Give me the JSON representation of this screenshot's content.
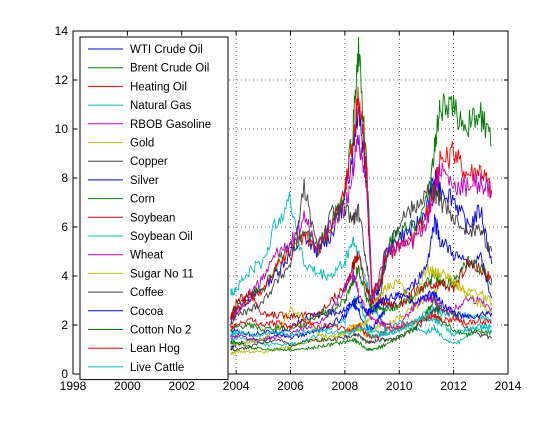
{
  "chart_data": {
    "type": "line",
    "x_ticks": [
      1998,
      2000,
      2002,
      2004,
      2006,
      2008,
      2010,
      2012,
      2014
    ],
    "y_ticks": [
      0,
      2,
      4,
      6,
      8,
      10,
      12,
      14
    ],
    "xlim": [
      1998,
      2014
    ],
    "ylim": [
      0,
      14
    ],
    "grid": "dotted, on",
    "legend_position": "top-left (inside plot)",
    "x": [
      2003.8,
      2004.0,
      2004.5,
      2005.0,
      2005.5,
      2006.0,
      2006.5,
      2007.0,
      2007.5,
      2008.0,
      2008.3,
      2008.5,
      2008.8,
      2009.0,
      2009.3,
      2009.5,
      2010.0,
      2010.5,
      2011.0,
      2011.3,
      2011.5,
      2012.0,
      2012.5,
      2013.0,
      2013.4
    ],
    "series": [
      {
        "name": "WTI Crude Oil",
        "color": "#0000ff",
        "values": [
          2.2,
          2.6,
          3.1,
          3.5,
          4.2,
          4.9,
          5.6,
          5.0,
          5.7,
          7.1,
          9.3,
          11.0,
          8.0,
          3.1,
          3.5,
          4.9,
          5.6,
          5.9,
          6.7,
          8.0,
          7.6,
          7.2,
          6.0,
          6.7,
          4.5
        ]
      },
      {
        "name": "Brent Crude Oil",
        "color": "#008000",
        "values": [
          2.4,
          2.7,
          3.2,
          3.5,
          4.5,
          5.1,
          5.8,
          5.2,
          6.2,
          7.3,
          10.0,
          13.2,
          8.5,
          3.3,
          3.8,
          5.1,
          5.8,
          6.0,
          7.0,
          9.2,
          10.9,
          10.8,
          10.2,
          10.6,
          9.3
        ]
      },
      {
        "name": "Heating Oil",
        "color": "#ff0000",
        "values": [
          2.3,
          2.6,
          3.0,
          3.4,
          4.5,
          4.9,
          5.6,
          5.0,
          6.0,
          7.5,
          9.5,
          11.4,
          8.4,
          3.3,
          3.7,
          4.7,
          5.3,
          5.5,
          6.4,
          7.8,
          8.6,
          9.0,
          8.2,
          8.4,
          7.5
        ]
      },
      {
        "name": "Natural Gas",
        "color": "#00bfbf",
        "values": [
          3.3,
          3.5,
          4.2,
          4.6,
          6.3,
          7.1,
          4.5,
          4.1,
          4.0,
          4.6,
          5.5,
          4.9,
          3.7,
          2.8,
          2.3,
          1.8,
          2.1,
          1.9,
          1.7,
          1.9,
          1.6,
          1.2,
          1.5,
          2.0,
          1.9
        ]
      },
      {
        "name": "RBOB Gasoline",
        "color": "#bf00bf",
        "values": [
          2.2,
          2.5,
          3.3,
          3.9,
          4.9,
          5.3,
          6.4,
          5.2,
          6.3,
          6.7,
          8.4,
          9.8,
          7.5,
          3.0,
          4.1,
          5.0,
          5.2,
          5.3,
          6.2,
          7.4,
          8.4,
          7.6,
          7.7,
          7.8,
          7.4
        ]
      },
      {
        "name": "Gold",
        "color": "#bfbf00",
        "values": [
          0.8,
          0.9,
          0.9,
          0.9,
          1.0,
          1.1,
          1.3,
          1.4,
          1.4,
          1.7,
          2.0,
          1.8,
          1.6,
          1.8,
          2.0,
          2.1,
          2.3,
          2.7,
          3.0,
          3.3,
          3.7,
          3.8,
          3.4,
          3.3,
          2.9
        ]
      },
      {
        "name": "Copper",
        "color": "#404040",
        "values": [
          2.0,
          2.4,
          2.6,
          3.0,
          3.8,
          4.5,
          7.6,
          5.0,
          6.5,
          6.7,
          6.3,
          6.6,
          4.6,
          2.5,
          3.2,
          4.6,
          6.3,
          6.8,
          7.4,
          7.4,
          7.1,
          6.2,
          6.0,
          5.8,
          5.0
        ]
      },
      {
        "name": "Silver",
        "color": "#0000ff",
        "values": [
          1.1,
          1.2,
          1.4,
          1.4,
          1.6,
          1.9,
          2.3,
          2.4,
          2.5,
          2.6,
          2.9,
          2.6,
          1.9,
          1.9,
          2.3,
          2.6,
          3.2,
          3.6,
          4.4,
          6.3,
          5.5,
          4.9,
          4.5,
          4.7,
          3.1
        ]
      },
      {
        "name": "Corn",
        "color": "#008000",
        "values": [
          1.8,
          1.9,
          2.0,
          1.8,
          1.9,
          1.9,
          2.0,
          2.4,
          2.6,
          3.0,
          3.8,
          4.3,
          3.1,
          2.6,
          2.7,
          2.6,
          2.8,
          3.1,
          3.7,
          4.0,
          3.8,
          3.7,
          4.6,
          4.3,
          3.8
        ]
      },
      {
        "name": "Soybean",
        "color": "#bf0000",
        "values": [
          2.3,
          2.9,
          3.4,
          2.4,
          2.4,
          2.4,
          2.4,
          2.4,
          3.0,
          3.5,
          4.4,
          4.9,
          3.4,
          2.9,
          3.0,
          2.9,
          2.8,
          3.3,
          3.6,
          3.5,
          3.7,
          3.5,
          4.5,
          4.3,
          3.8
        ]
      },
      {
        "name": "Soybean Oil",
        "color": "#00bfbf",
        "values": [
          1.3,
          1.5,
          1.4,
          1.2,
          1.2,
          1.2,
          1.3,
          1.6,
          1.9,
          2.2,
          3.0,
          3.1,
          2.1,
          1.7,
          1.7,
          1.6,
          1.8,
          2.1,
          2.5,
          2.6,
          2.5,
          2.4,
          2.4,
          2.3,
          2.2
        ]
      },
      {
        "name": "Wheat",
        "color": "#bf00bf",
        "values": [
          1.4,
          1.6,
          1.4,
          1.4,
          1.5,
          1.6,
          1.9,
          2.0,
          2.6,
          3.5,
          4.1,
          3.4,
          2.5,
          2.3,
          2.1,
          2.0,
          1.9,
          2.7,
          3.1,
          3.0,
          2.7,
          2.6,
          3.1,
          3.0,
          2.7
        ]
      },
      {
        "name": "Sugar No 11",
        "color": "#bfbf00",
        "values": [
          1.2,
          1.2,
          1.3,
          1.4,
          1.8,
          2.6,
          2.3,
          1.6,
          1.5,
          1.7,
          1.9,
          2.0,
          2.1,
          2.6,
          3.2,
          3.5,
          3.8,
          2.8,
          4.3,
          4.1,
          4.1,
          3.8,
          3.2,
          2.8,
          2.4
        ]
      },
      {
        "name": "Coffee",
        "color": "#404040",
        "values": [
          1.0,
          1.0,
          1.1,
          1.3,
          1.4,
          1.2,
          1.3,
          1.4,
          1.4,
          1.5,
          1.6,
          1.6,
          1.3,
          1.3,
          1.4,
          1.4,
          1.5,
          1.8,
          2.2,
          2.6,
          2.7,
          2.4,
          1.9,
          1.6,
          1.5
        ]
      },
      {
        "name": "Cocoa",
        "color": "#0000ff",
        "values": [
          1.6,
          1.8,
          1.6,
          1.7,
          1.7,
          1.5,
          1.6,
          1.8,
          2.0,
          2.4,
          2.9,
          3.0,
          2.5,
          2.6,
          2.9,
          3.1,
          3.3,
          2.9,
          3.2,
          3.3,
          3.0,
          2.5,
          2.3,
          2.4,
          2.5
        ]
      },
      {
        "name": "Cotton No 2",
        "color": "#008000",
        "values": [
          1.3,
          1.3,
          1.1,
          1.0,
          1.0,
          1.0,
          1.0,
          1.1,
          1.2,
          1.3,
          1.4,
          1.3,
          1.0,
          1.0,
          1.1,
          1.2,
          1.5,
          1.8,
          2.5,
          3.0,
          2.2,
          1.8,
          1.6,
          1.7,
          1.7
        ]
      },
      {
        "name": "Lean Hog",
        "color": "#ff0000",
        "values": [
          1.9,
          2.0,
          2.2,
          2.0,
          2.1,
          1.9,
          2.2,
          1.9,
          2.0,
          1.8,
          1.8,
          2.0,
          1.6,
          1.5,
          1.6,
          1.8,
          1.9,
          2.1,
          2.3,
          2.4,
          2.2,
          2.2,
          2.1,
          2.2,
          2.1
        ]
      },
      {
        "name": "Live Cattle",
        "color": "#00bfbf",
        "values": [
          1.6,
          1.7,
          1.6,
          1.6,
          1.7,
          1.6,
          1.7,
          1.8,
          1.7,
          1.7,
          1.7,
          1.9,
          1.8,
          1.5,
          1.6,
          1.7,
          1.8,
          2.1,
          2.3,
          2.2,
          2.1,
          1.6,
          1.8,
          1.9,
          1.8
        ]
      }
    ]
  }
}
